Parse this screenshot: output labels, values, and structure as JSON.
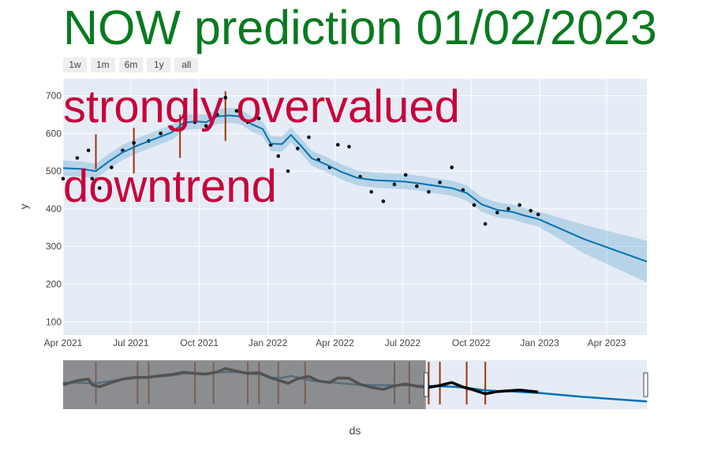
{
  "title": "NOW prediction 01/02/2023",
  "range_buttons": [
    "1w",
    "1m",
    "6m",
    "1y",
    "all"
  ],
  "annotations": [
    "strongly overvalued",
    "downtrend"
  ],
  "colors": {
    "title": "#0a7a1f",
    "annotation": "#c8003a",
    "plot_bg": "#e5ecf6",
    "forecast_line": "#0072b2",
    "band": "rgba(0,114,178,0.2)",
    "points": "#000000",
    "changepoints": "#a0320a"
  },
  "chart_data": {
    "type": "line",
    "xlabel": "ds",
    "ylabel": "y",
    "x_range": [
      "2021-04-01",
      "2023-05-25"
    ],
    "y_range": [
      65,
      745
    ],
    "x_ticks": [
      "Apr 2021",
      "Jul 2021",
      "Oct 2021",
      "Jan 2022",
      "Apr 2022",
      "Jul 2022",
      "Oct 2022",
      "Jan 2023",
      "Apr 2023"
    ],
    "y_ticks": [
      100,
      200,
      300,
      400,
      500,
      600,
      700
    ],
    "forecast": {
      "x": [
        "2021-04-01",
        "2021-04-25",
        "2021-05-15",
        "2021-06-01",
        "2021-06-20",
        "2021-07-10",
        "2021-08-01",
        "2021-08-25",
        "2021-09-10",
        "2021-09-25",
        "2021-10-10",
        "2021-10-25",
        "2021-11-10",
        "2021-11-25",
        "2021-12-10",
        "2021-12-25",
        "2022-01-05",
        "2022-01-20",
        "2022-02-01",
        "2022-02-15",
        "2022-03-01",
        "2022-03-20",
        "2022-04-10",
        "2022-05-01",
        "2022-05-25",
        "2022-06-15",
        "2022-07-05",
        "2022-07-25",
        "2022-08-15",
        "2022-09-05",
        "2022-09-25",
        "2022-10-15",
        "2022-11-05",
        "2022-11-25",
        "2022-12-10",
        "2022-12-30",
        "2023-03-01",
        "2023-05-25"
      ],
      "y": [
        508,
        506,
        500,
        525,
        550,
        568,
        585,
        603,
        628,
        632,
        630,
        645,
        648,
        645,
        625,
        612,
        573,
        572,
        596,
        566,
        534,
        518,
        498,
        482,
        476,
        474,
        472,
        467,
        461,
        455,
        442,
        412,
        397,
        392,
        383,
        373,
        320,
        260
      ],
      "band_width": [
        20,
        20,
        20,
        20,
        20,
        20,
        20,
        20,
        20,
        20,
        20,
        20,
        20,
        20,
        20,
        20,
        20,
        20,
        20,
        20,
        20,
        20,
        20,
        20,
        20,
        20,
        20,
        20,
        20,
        20,
        20,
        20,
        20,
        20,
        20,
        20,
        38,
        55
      ]
    },
    "actual_samples": {
      "x": [
        "2021-04-01",
        "2021-04-20",
        "2021-05-05",
        "2021-05-10",
        "2021-05-20",
        "2021-06-05",
        "2021-06-20",
        "2021-07-05",
        "2021-07-25",
        "2021-08-10",
        "2021-08-25",
        "2021-09-10",
        "2021-09-25",
        "2021-10-10",
        "2021-10-25",
        "2021-11-05",
        "2021-11-20",
        "2021-12-05",
        "2021-12-20",
        "2022-01-05",
        "2022-01-15",
        "2022-01-28",
        "2022-02-10",
        "2022-02-25",
        "2022-03-10",
        "2022-03-25",
        "2022-04-05",
        "2022-04-20",
        "2022-05-05",
        "2022-05-20",
        "2022-06-05",
        "2022-06-20",
        "2022-07-05",
        "2022-07-20",
        "2022-08-05",
        "2022-08-20",
        "2022-09-05",
        "2022-09-20",
        "2022-10-05",
        "2022-10-20",
        "2022-11-05",
        "2022-11-20",
        "2022-12-05",
        "2022-12-20",
        "2022-12-30"
      ],
      "y": [
        480,
        535,
        555,
        480,
        455,
        510,
        555,
        575,
        580,
        600,
        615,
        645,
        630,
        620,
        650,
        695,
        660,
        630,
        640,
        570,
        540,
        500,
        560,
        590,
        530,
        510,
        570,
        565,
        485,
        445,
        420,
        465,
        490,
        460,
        445,
        470,
        510,
        450,
        410,
        360,
        390,
        400,
        410,
        395,
        385
      ]
    },
    "changepoints": [
      "2021-05-15",
      "2021-07-05",
      "2021-09-05",
      "2021-11-05"
    ],
    "slider_changepoints": [
      "2021-05-15",
      "2021-07-10",
      "2021-07-25",
      "2021-09-25",
      "2021-10-20",
      "2021-12-05",
      "2021-12-20",
      "2022-01-15",
      "2022-02-20",
      "2022-06-20",
      "2022-07-10",
      "2022-08-05",
      "2022-08-20",
      "2022-09-25",
      "2022-10-20"
    ],
    "slider_selected_range": [
      "2022-08-01",
      "2023-05-25"
    ]
  }
}
